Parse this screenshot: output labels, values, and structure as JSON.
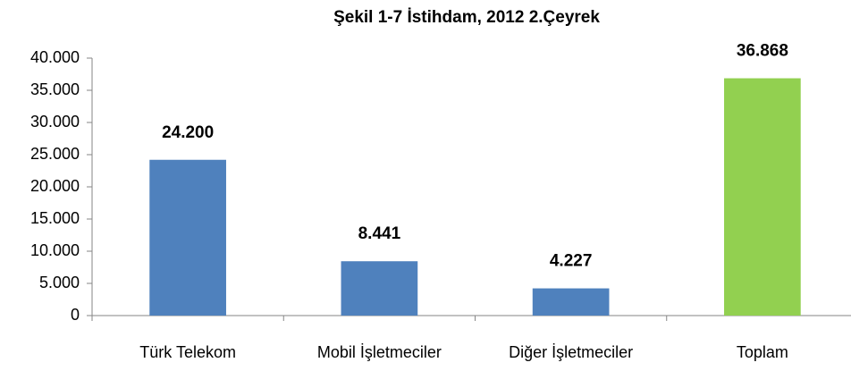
{
  "chart_data": {
    "type": "bar",
    "title": "Şekil 1-7 İstihdam, 2012 2.Çeyrek",
    "categories": [
      "Türk Telekom",
      "Mobil İşletmeciler",
      "Diğer İşletmeciler",
      "Toplam"
    ],
    "values": [
      24200,
      8441,
      4227,
      36868
    ],
    "value_labels": [
      "24.200",
      "8.441",
      "4.227",
      "36.868"
    ],
    "colors": [
      "#4f81bd",
      "#4f81bd",
      "#4f81bd",
      "#92d050"
    ],
    "ylim": [
      0,
      40000
    ],
    "yticks": [
      0,
      {
        "value": 5000,
        "label": "5.000"
      },
      {
        "value": 10000,
        "label": "10.000"
      },
      {
        "value": 15000,
        "label": "15.000"
      },
      {
        "value": 20000,
        "label": "20.000"
      },
      {
        "value": 25000,
        "label": "25.000"
      },
      {
        "value": 30000,
        "label": "30.000"
      },
      {
        "value": 35000,
        "label": "35.000"
      },
      {
        "value": 40000,
        "label": "40.000"
      }
    ],
    "grid": false
  }
}
